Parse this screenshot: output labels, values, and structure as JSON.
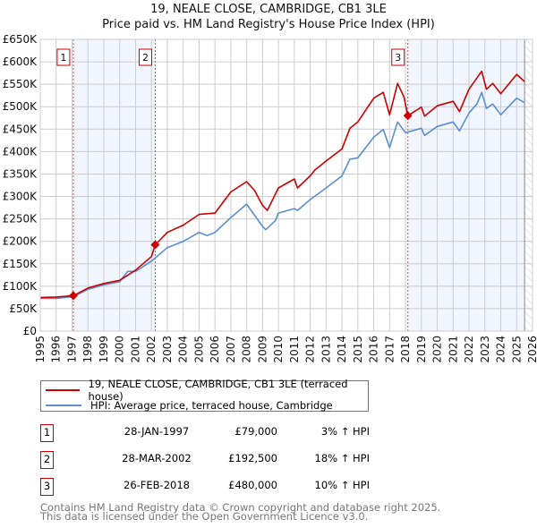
{
  "chart_data": {
    "type": "line",
    "title": "19, NEALE CLOSE, CAMBRIDGE, CB1 3LE",
    "subtitle": "Price paid vs. HM Land Registry's House Price Index (HPI)",
    "xlim": [
      1995,
      2026
    ],
    "ylim": [
      0,
      650000
    ],
    "grid": true,
    "x_ticks": [
      "1995",
      "1996",
      "1997",
      "1998",
      "1999",
      "2000",
      "2001",
      "2002",
      "2003",
      "2004",
      "2005",
      "2006",
      "2007",
      "2008",
      "2009",
      "2010",
      "2011",
      "2012",
      "2013",
      "2014",
      "2015",
      "2016",
      "2017",
      "2018",
      "2019",
      "2020",
      "2021",
      "2022",
      "2023",
      "2024",
      "2025",
      "2026"
    ],
    "y_ticks": [
      {
        "v": 0,
        "label": "£0"
      },
      {
        "v": 50000,
        "label": "£50K"
      },
      {
        "v": 100000,
        "label": "£100K"
      },
      {
        "v": 150000,
        "label": "£150K"
      },
      {
        "v": 200000,
        "label": "£200K"
      },
      {
        "v": 250000,
        "label": "£250K"
      },
      {
        "v": 300000,
        "label": "£300K"
      },
      {
        "v": 350000,
        "label": "£350K"
      },
      {
        "v": 400000,
        "label": "£400K"
      },
      {
        "v": 450000,
        "label": "£450K"
      },
      {
        "v": 500000,
        "label": "£500K"
      },
      {
        "v": 550000,
        "label": "£550K"
      },
      {
        "v": 600000,
        "label": "£600K"
      },
      {
        "v": 650000,
        "label": "£650K"
      }
    ],
    "series": [
      {
        "name": "19, NEALE CLOSE, CAMBRIDGE, CB1 3LE (terraced house)",
        "color": "#cc0000",
        "x": [
          1995,
          1996,
          1997.08,
          1998,
          1999,
          2000,
          2001,
          2002,
          2002.24,
          2003,
          2004,
          2005,
          2006,
          2007,
          2008,
          2008.5,
          2009,
          2009.3,
          2010,
          2011,
          2011.2,
          2012,
          2012.3,
          2013,
          2014,
          2014.5,
          2015,
          2016,
          2016.6,
          2017,
          2017.5,
          2017.9,
          2018.15,
          2019,
          2019.2,
          2020,
          2021,
          2021.4,
          2022,
          2022.8,
          2023.1,
          2023.5,
          2024,
          2025,
          2025.5
        ],
        "y": [
          75000,
          76000,
          79000,
          96000,
          106000,
          113000,
          136000,
          166000,
          192500,
          220000,
          236000,
          260000,
          263000,
          310000,
          333000,
          313000,
          280000,
          269000,
          319000,
          339000,
          319000,
          346000,
          359000,
          379000,
          406000,
          452000,
          466000,
          519000,
          532000,
          482000,
          552000,
          522000,
          480000,
          499000,
          479000,
          502000,
          512000,
          489000,
          539000,
          579000,
          539000,
          552000,
          529000,
          572000,
          556000
        ]
      },
      {
        "name": "HPI: Average price, terraced house, Cambridge",
        "color": "#5b8fd4",
        "x": [
          1995,
          1996,
          1997.08,
          1998,
          1999,
          2000,
          2000.5,
          2001,
          2002,
          2002.24,
          2003,
          2004,
          2005,
          2005.5,
          2006,
          2007,
          2008,
          2009,
          2009.2,
          2009.8,
          2010,
          2011,
          2011.2,
          2012,
          2013,
          2014,
          2014.5,
          2015,
          2016,
          2016.6,
          2017,
          2017.5,
          2018,
          2019,
          2019.2,
          2020,
          2021,
          2021.4,
          2022,
          2022.5,
          2022.8,
          2023.1,
          2023.5,
          2024,
          2025,
          2025.5
        ],
        "y": [
          73000,
          73000,
          77000,
          93000,
          103000,
          110000,
          133000,
          133000,
          156000,
          163000,
          186000,
          200000,
          220000,
          213000,
          220000,
          253000,
          283000,
          233000,
          226000,
          246000,
          263000,
          273000,
          269000,
          293000,
          319000,
          346000,
          383000,
          386000,
          432000,
          449000,
          409000,
          466000,
          442000,
          452000,
          436000,
          456000,
          466000,
          446000,
          486000,
          506000,
          532000,
          496000,
          506000,
          482000,
          519000,
          509000
        ]
      }
    ],
    "sales": [
      {
        "label": "1",
        "x": 1997.08,
        "y": 79000
      },
      {
        "label": "2",
        "x": 2002.24,
        "y": 192500
      },
      {
        "label": "3",
        "x": 2018.15,
        "y": 480000
      }
    ],
    "shaded_ranges": [
      [
        1997.08,
        2002.24
      ],
      [
        2018.15,
        2025.5
      ]
    ],
    "data_end": 2025.5,
    "legend_position": "below"
  },
  "legend": [
    {
      "label": "19, NEALE CLOSE, CAMBRIDGE, CB1 3LE (terraced house)",
      "color": "#cc0000"
    },
    {
      "label": "HPI: Average price, terraced house, Cambridge",
      "color": "#5b8fd4"
    }
  ],
  "transactions": [
    {
      "num": "1",
      "date": "28-JAN-1997",
      "price": "£79,000",
      "hpi": "3% ↑ HPI"
    },
    {
      "num": "2",
      "date": "28-MAR-2002",
      "price": "£192,500",
      "hpi": "18% ↑ HPI"
    },
    {
      "num": "3",
      "date": "26-FEB-2018",
      "price": "£480,000",
      "hpi": "10% ↑ HPI"
    }
  ],
  "footer": {
    "line1": "Contains HM Land Registry data © Crown copyright and database right 2025.",
    "line2": "This data is licensed under the Open Government Licence v3.0."
  }
}
